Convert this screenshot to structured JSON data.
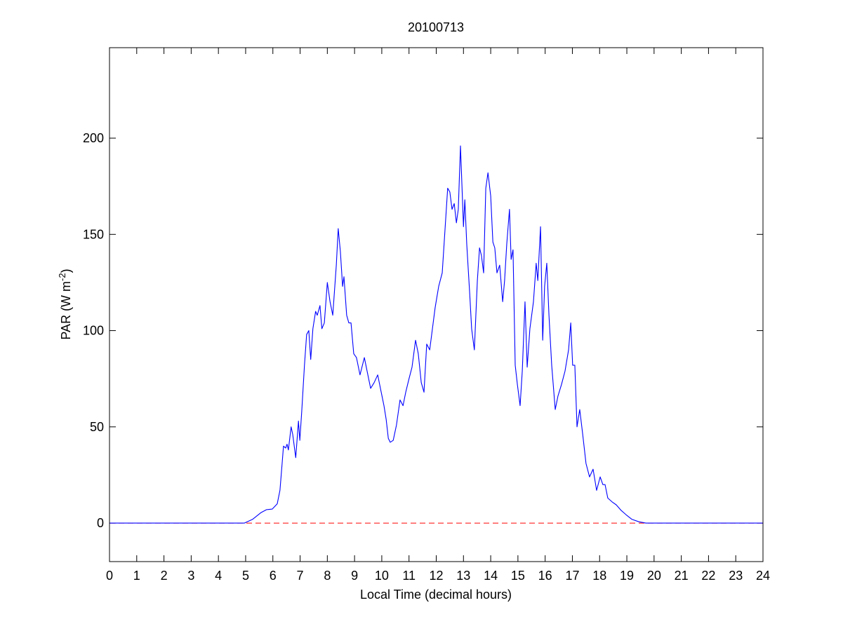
{
  "chart_data": {
    "type": "line",
    "title": "20100713",
    "xlabel": "Local Time (decimal hours)",
    "ylabel": [
      "PAR (W m",
      "-2",
      ")"
    ],
    "color": "#0000ff",
    "x": [
      0,
      4.95,
      5.26,
      5.57,
      5.77,
      5.98,
      6.16,
      6.26,
      6.34,
      6.39,
      6.47,
      6.52,
      6.57,
      6.67,
      6.73,
      6.84,
      6.94,
      6.99,
      7.06,
      7.16,
      7.24,
      7.32,
      7.39,
      7.47,
      7.57,
      7.63,
      7.73,
      7.8,
      7.89,
      8.0,
      8.1,
      8.2,
      8.33,
      8.4,
      8.48,
      8.56,
      8.61,
      8.71,
      8.79,
      8.87,
      8.97,
      9.07,
      9.2,
      9.36,
      9.46,
      9.59,
      9.72,
      9.85,
      9.95,
      10.08,
      10.16,
      10.24,
      10.31,
      10.42,
      10.54,
      10.67,
      10.78,
      10.88,
      11.0,
      11.11,
      11.24,
      11.34,
      11.45,
      11.55,
      11.65,
      11.76,
      11.86,
      11.96,
      12.09,
      12.22,
      12.32,
      12.42,
      12.5,
      12.58,
      12.66,
      12.74,
      12.81,
      12.89,
      12.94,
      13.0,
      13.05,
      13.12,
      13.23,
      13.3,
      13.4,
      13.51,
      13.59,
      13.66,
      13.74,
      13.82,
      13.9,
      14.0,
      14.08,
      14.15,
      14.23,
      14.33,
      14.44,
      14.51,
      14.59,
      14.69,
      14.75,
      14.82,
      14.9,
      14.98,
      15.08,
      15.16,
      15.26,
      15.34,
      15.44,
      15.57,
      15.67,
      15.73,
      15.83,
      15.91,
      15.98,
      16.06,
      16.14,
      16.24,
      16.37,
      16.47,
      16.6,
      16.73,
      16.86,
      16.94,
      17.01,
      17.09,
      17.17,
      17.27,
      17.38,
      17.5,
      17.63,
      17.76,
      17.89,
      18.02,
      18.12,
      18.2,
      18.3,
      18.46,
      18.61,
      18.79,
      19.0,
      19.18,
      19.44,
      19.7,
      24
    ],
    "values": [
      0,
      0,
      2,
      5.5,
      7,
      7.3,
      10,
      17,
      31,
      40,
      39,
      41,
      38,
      50,
      46,
      34,
      53,
      43,
      58,
      82,
      98,
      100,
      85,
      101,
      110,
      108,
      113,
      101,
      104,
      125,
      115,
      108,
      134,
      153,
      141,
      123,
      128,
      108,
      104,
      104,
      88,
      86,
      77,
      86,
      79,
      70,
      73,
      77,
      70,
      61,
      54,
      44,
      42,
      43,
      51,
      64,
      61,
      68,
      75,
      81,
      95,
      88,
      73,
      68,
      93,
      90,
      101,
      112,
      123,
      130,
      152,
      174,
      172,
      163,
      166,
      156,
      163,
      196,
      177,
      154,
      168,
      145,
      119,
      101,
      90,
      126,
      143,
      139,
      130,
      174,
      182,
      170,
      146,
      143,
      130,
      134,
      115,
      126,
      145,
      163,
      137,
      142,
      82,
      72,
      61,
      79,
      115,
      81,
      101,
      115,
      135,
      126,
      154,
      95,
      123,
      135,
      108,
      82,
      59,
      66,
      72,
      79,
      90,
      104,
      82,
      82,
      50,
      59,
      46,
      31,
      24,
      28,
      17,
      24,
      20,
      20,
      13,
      11,
      9.5,
      6.6,
      4,
      2,
      0.7,
      0,
      0
    ],
    "reference_line": {
      "y": 0,
      "color": "#ff0000",
      "style": "dashed"
    },
    "xlim": [
      0,
      24
    ],
    "ylim": [
      -20,
      247
    ],
    "xticks": [
      0,
      1,
      2,
      3,
      4,
      5,
      6,
      7,
      8,
      9,
      10,
      11,
      12,
      13,
      14,
      15,
      16,
      17,
      18,
      19,
      20,
      21,
      22,
      23,
      24
    ],
    "yticks": [
      0,
      50,
      100,
      150,
      200
    ],
    "grid": false
  }
}
